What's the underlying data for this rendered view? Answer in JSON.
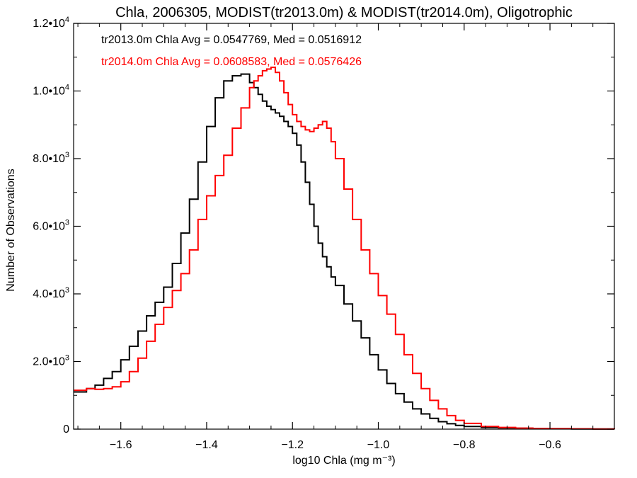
{
  "chart_data": {
    "type": "line",
    "title": "Chla, 2006305, MODIST(tr2013.0m) & MODIST(tr2014.0m), Oligotrophic",
    "xlabel": "log10 Chla (mg m⁻³)",
    "ylabel": "Number of Observations",
    "xlim": [
      -1.71,
      -0.45
    ],
    "ylim": [
      0,
      12000
    ],
    "x_ticks": [
      -1.6,
      -1.4,
      -1.2,
      -1.0,
      -0.8,
      -0.6
    ],
    "x_tick_labels": [
      "−1.6",
      "−1.4",
      "−1.2",
      "−1.0",
      "−0.8",
      "−0.6"
    ],
    "y_ticks": [
      {
        "value": 0,
        "mantissa": "0",
        "exponent": ""
      },
      {
        "value": 2000,
        "mantissa": "2.0•10",
        "exponent": "3"
      },
      {
        "value": 4000,
        "mantissa": "4.0•10",
        "exponent": "3"
      },
      {
        "value": 6000,
        "mantissa": "6.0•10",
        "exponent": "3"
      },
      {
        "value": 8000,
        "mantissa": "8.0•10",
        "exponent": "3"
      },
      {
        "value": 10000,
        "mantissa": "1.0•10",
        "exponent": "4"
      },
      {
        "value": 12000,
        "mantissa": "1.2•10",
        "exponent": "4"
      }
    ],
    "step_style": "histogram",
    "annotations": [
      {
        "text": "tr2013.0m Chla Avg = 0.0547769, Med = 0.0516912",
        "color": "#000000"
      },
      {
        "text": "tr2014.0m Chla Avg = 0.0608583, Med = 0.0576426",
        "color": "#ff0000"
      }
    ],
    "series": [
      {
        "color": "#000000",
        "x": [
          -1.71,
          -1.68,
          -1.66,
          -1.64,
          -1.62,
          -1.6,
          -1.58,
          -1.56,
          -1.54,
          -1.52,
          -1.5,
          -1.48,
          -1.46,
          -1.44,
          -1.42,
          -1.4,
          -1.38,
          -1.36,
          -1.34,
          -1.32,
          -1.3,
          -1.29,
          -1.28,
          -1.27,
          -1.26,
          -1.25,
          -1.24,
          -1.23,
          -1.22,
          -1.21,
          -1.2,
          -1.19,
          -1.18,
          -1.17,
          -1.16,
          -1.15,
          -1.14,
          -1.13,
          -1.12,
          -1.11,
          -1.1,
          -1.08,
          -1.06,
          -1.04,
          -1.02,
          -1.0,
          -0.98,
          -0.96,
          -0.94,
          -0.92,
          -0.9,
          -0.88,
          -0.86,
          -0.84,
          -0.82,
          -0.8,
          -0.76,
          -0.72,
          -0.68,
          -0.64,
          -0.6,
          -0.55,
          -0.5,
          -0.45
        ],
        "y": [
          1100,
          1200,
          1300,
          1500,
          1700,
          2050,
          2450,
          2900,
          3350,
          3750,
          4200,
          4900,
          5800,
          6800,
          7900,
          8950,
          9800,
          10300,
          10450,
          10500,
          10250,
          10100,
          9900,
          9700,
          9550,
          9450,
          9350,
          9250,
          9100,
          8950,
          8750,
          8400,
          7900,
          7300,
          6650,
          6000,
          5500,
          5100,
          4800,
          4500,
          4250,
          3700,
          3200,
          2700,
          2200,
          1750,
          1350,
          1050,
          800,
          600,
          450,
          320,
          220,
          160,
          110,
          80,
          50,
          35,
          25,
          15,
          10,
          5,
          2,
          0
        ]
      },
      {
        "color": "#ff0000",
        "x": [
          -1.71,
          -1.68,
          -1.66,
          -1.64,
          -1.62,
          -1.6,
          -1.58,
          -1.56,
          -1.54,
          -1.52,
          -1.5,
          -1.48,
          -1.46,
          -1.44,
          -1.42,
          -1.4,
          -1.38,
          -1.36,
          -1.34,
          -1.32,
          -1.3,
          -1.29,
          -1.28,
          -1.27,
          -1.26,
          -1.25,
          -1.24,
          -1.23,
          -1.22,
          -1.21,
          -1.2,
          -1.19,
          -1.18,
          -1.17,
          -1.16,
          -1.15,
          -1.14,
          -1.13,
          -1.12,
          -1.11,
          -1.1,
          -1.08,
          -1.06,
          -1.04,
          -1.02,
          -1.0,
          -0.98,
          -0.96,
          -0.94,
          -0.92,
          -0.9,
          -0.88,
          -0.86,
          -0.84,
          -0.82,
          -0.8,
          -0.76,
          -0.72,
          -0.68,
          -0.64,
          -0.6,
          -0.55,
          -0.5,
          -0.45
        ],
        "y": [
          1150,
          1200,
          1180,
          1200,
          1250,
          1400,
          1700,
          2100,
          2600,
          3100,
          3600,
          4100,
          4600,
          5300,
          6200,
          6900,
          7500,
          8100,
          8900,
          9500,
          10100,
          10300,
          10450,
          10600,
          10650,
          10700,
          10550,
          10300,
          9950,
          9600,
          9300,
          9100,
          8950,
          8850,
          8800,
          8900,
          9000,
          9100,
          8900,
          8500,
          8000,
          7100,
          6200,
          5300,
          4600,
          3950,
          3400,
          2800,
          2200,
          1650,
          1200,
          850,
          600,
          400,
          260,
          170,
          80,
          50,
          30,
          20,
          15,
          10,
          5,
          0
        ]
      }
    ]
  }
}
